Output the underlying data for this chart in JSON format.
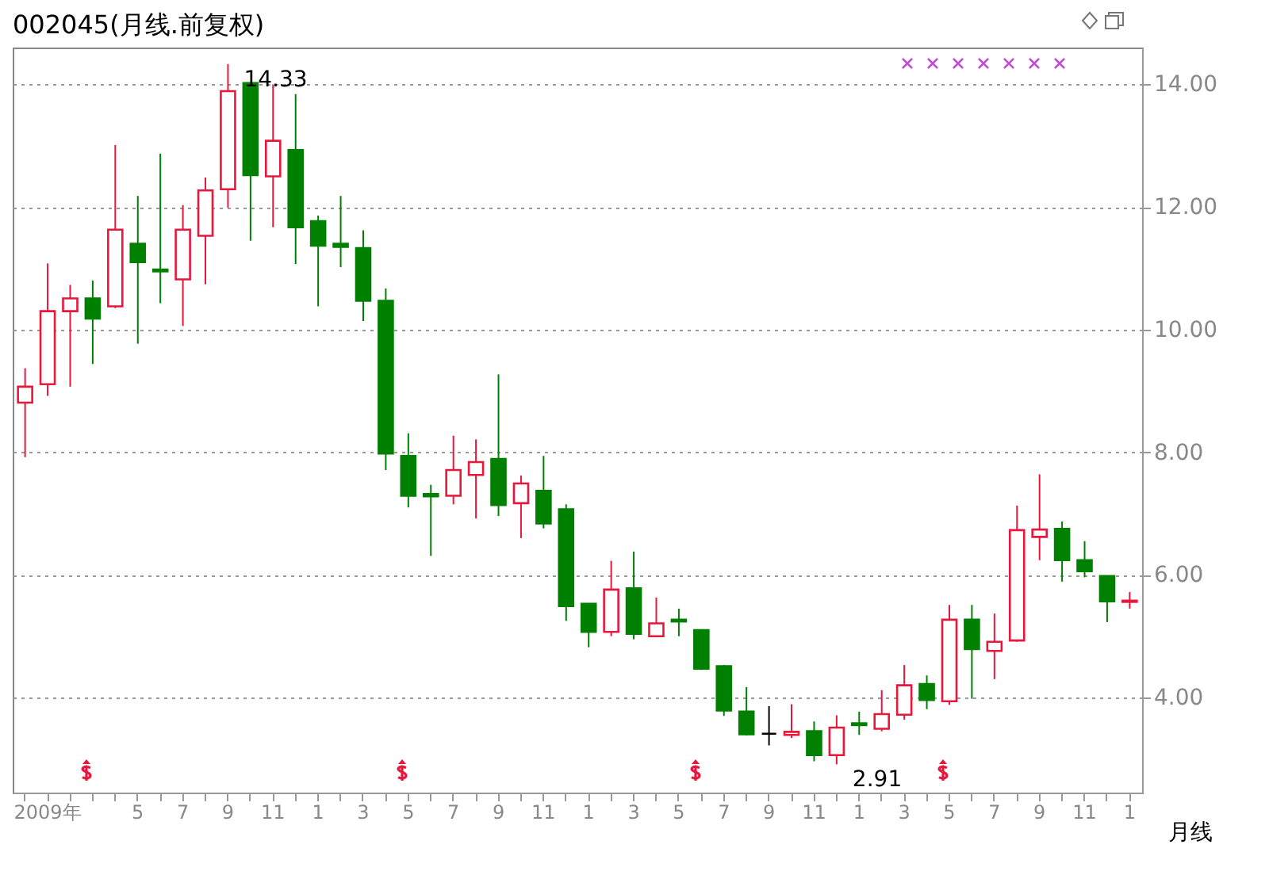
{
  "chart_data": {
    "type": "candlestick",
    "title": "002045(月线.前复权)",
    "xlabel": "月线",
    "categories": [
      null,
      "2009年",
      null,
      null,
      null,
      "5",
      null,
      "7",
      null,
      "9",
      null,
      "11",
      null,
      "1",
      null,
      "3",
      null,
      "5",
      null,
      "7",
      null,
      "9",
      null,
      "11",
      null,
      "1",
      null,
      "3",
      null,
      "5",
      null,
      "7",
      null,
      "9",
      null,
      "11",
      null,
      "1",
      null,
      "3",
      null,
      "5",
      null,
      "7",
      null,
      "9",
      null,
      "11",
      null,
      "1"
    ],
    "ohlc": [
      [
        8.81,
        9.37,
        7.92,
        9.07
      ],
      [
        9.11,
        11.08,
        8.92,
        10.3
      ],
      [
        10.3,
        10.73,
        9.07,
        10.51
      ],
      [
        10.51,
        10.8,
        9.44,
        10.18
      ],
      [
        10.38,
        13.01,
        10.35,
        11.63
      ],
      [
        11.4,
        12.18,
        9.77,
        11.1
      ],
      [
        10.98,
        12.87,
        10.43,
        10.95
      ],
      [
        10.82,
        12.03,
        10.06,
        11.63
      ],
      [
        11.53,
        12.48,
        10.74,
        12.27
      ],
      [
        12.29,
        14.33,
        11.99,
        13.89
      ],
      [
        14.02,
        14.02,
        11.45,
        12.52
      ],
      [
        12.5,
        14.0,
        11.67,
        13.08
      ],
      [
        12.93,
        13.84,
        11.07,
        11.67
      ],
      [
        11.77,
        11.86,
        10.38,
        11.37
      ],
      [
        11.4,
        12.18,
        11.02,
        11.35
      ],
      [
        11.33,
        11.62,
        10.14,
        10.47
      ],
      [
        10.47,
        10.67,
        7.71,
        7.98
      ],
      [
        7.94,
        8.31,
        7.1,
        7.29
      ],
      [
        7.32,
        7.47,
        6.31,
        7.28
      ],
      [
        7.29,
        8.27,
        7.15,
        7.71
      ],
      [
        7.63,
        8.21,
        6.92,
        7.84
      ],
      [
        7.89,
        9.27,
        6.96,
        7.14
      ],
      [
        7.17,
        7.62,
        6.6,
        7.49
      ],
      [
        7.37,
        7.94,
        6.76,
        6.84
      ],
      [
        7.07,
        7.15,
        5.25,
        5.49
      ],
      [
        5.53,
        5.53,
        4.82,
        5.07
      ],
      [
        5.07,
        6.23,
        5.0,
        5.76
      ],
      [
        5.78,
        6.38,
        4.95,
        5.04
      ],
      [
        5.0,
        5.63,
        5.0,
        5.21
      ],
      [
        5.27,
        5.45,
        5.0,
        5.24
      ],
      [
        5.1,
        5.11,
        4.45,
        4.47
      ],
      [
        4.51,
        4.53,
        3.7,
        3.79
      ],
      [
        3.77,
        4.17,
        3.38,
        3.4
      ],
      [
        3.41,
        3.86,
        3.22,
        3.41
      ],
      [
        3.39,
        3.89,
        3.34,
        3.44
      ],
      [
        3.45,
        3.61,
        2.96,
        3.06
      ],
      [
        3.06,
        3.71,
        2.91,
        3.51
      ],
      [
        3.58,
        3.77,
        3.39,
        3.55
      ],
      [
        3.49,
        4.12,
        3.45,
        3.73
      ],
      [
        3.72,
        4.53,
        3.64,
        4.2
      ],
      [
        4.22,
        4.36,
        3.81,
        3.96
      ],
      [
        3.94,
        5.51,
        3.88,
        5.27
      ],
      [
        5.27,
        5.51,
        3.98,
        4.79
      ],
      [
        4.76,
        5.37,
        4.3,
        4.91
      ],
      [
        4.93,
        7.13,
        4.91,
        6.73
      ],
      [
        6.62,
        7.64,
        6.24,
        6.74
      ],
      [
        6.75,
        6.87,
        5.89,
        6.24
      ],
      [
        6.24,
        6.55,
        5.96,
        6.06
      ],
      [
        5.98,
        5.98,
        5.23,
        5.57
      ],
      [
        5.56,
        5.72,
        5.45,
        5.58
      ]
    ],
    "colors": [
      "#e8173c",
      "#e8173c",
      "#e8173c",
      "#008000",
      "#e8173c",
      "#008000",
      "#008000",
      "#e8173c",
      "#e8173c",
      "#e8173c",
      "#008000",
      "#e8173c",
      "#008000",
      "#008000",
      "#008000",
      "#008000",
      "#008000",
      "#008000",
      "#008000",
      "#e8173c",
      "#e8173c",
      "#008000",
      "#e8173c",
      "#008000",
      "#008000",
      "#008000",
      "#e8173c",
      "#008000",
      "#e8173c",
      "#008000",
      "#008000",
      "#008000",
      "#008000",
      "#000000",
      "#e8173c",
      "#008000",
      "#e8173c",
      "#008000",
      "#e8173c",
      "#e8173c",
      "#008000",
      "#e8173c",
      "#008000",
      "#e8173c",
      "#e8173c",
      "#e8173c",
      "#008000",
      "#008000",
      "#008000",
      "#e8173c"
    ],
    "ylim": [
      2.45,
      14.6
    ],
    "yticks": [
      {
        "value": 4,
        "label": "4.00"
      },
      {
        "value": 6,
        "label": "6.00"
      },
      {
        "value": 8,
        "label": "8.00"
      },
      {
        "value": 10,
        "label": "10.00"
      },
      {
        "value": 12,
        "label": "12.00"
      },
      {
        "value": 14,
        "label": "14.00"
      }
    ],
    "grid": "y",
    "annotations": [
      "14.33",
      "2.91"
    ]
  }
}
